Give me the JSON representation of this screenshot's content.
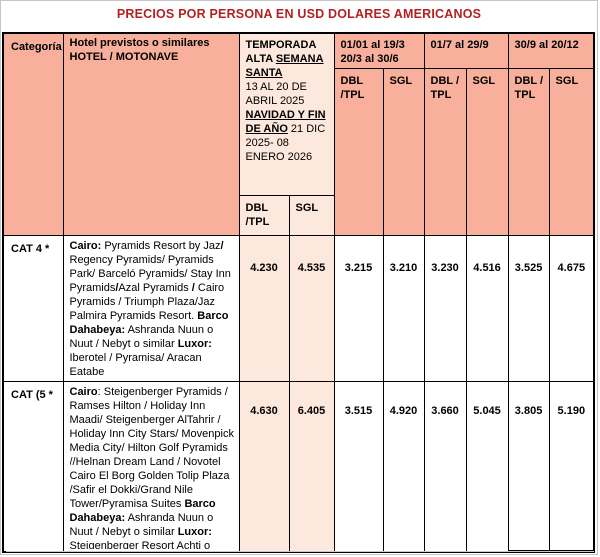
{
  "title": "PRECIOS POR PERSONA EN USD DOLARES AMERICANOS",
  "colors": {
    "title_red": "#b42121",
    "header_salmon": "#f8b09c",
    "temporada_peach": "#fce8dc"
  },
  "header": {
    "categoria": "Categoría",
    "hotels": "Hotel previstos o similares\nHOTEL / MOTONAVE",
    "temporada_segments": [
      {
        "t": "TEMPORADA ALTA ",
        "b": 1
      },
      {
        "t": "SEMANA SANTA",
        "b": 1,
        "u": 1
      },
      {
        "t": "\n13 AL 20 DE ABRIL 2025\n"
      },
      {
        "t": "NAVIDAD Y FIN DE AÑO",
        "b": 1,
        "u": 1
      },
      {
        "t": " 21 DIC 2025- 08 ENERO 2026"
      }
    ],
    "seasons": [
      "01/01 al 19/3\n20/3 al 30/6",
      "01/7 al 29/9",
      "30/9 al 20/12"
    ],
    "sub": {
      "dbl_a": "DBL\n/TPL",
      "dbl_b": "DBL /\nTPL",
      "sgl": "SGL"
    }
  },
  "rows": [
    {
      "category": "CAT 4 *",
      "hotel_segments": [
        {
          "t": "Cairo:",
          "b": 1
        },
        {
          "t": " Pyramids Resort by Jaz"
        },
        {
          "t": "/",
          "b": 1
        },
        {
          "t": " Regency Pyramids/ Pyramids Park/ Barceló Pyramids/ Stay Inn Pyramids"
        },
        {
          "t": "/",
          "b": 1
        },
        {
          "t": "Azal Pyramids "
        },
        {
          "t": "/",
          "b": 1
        },
        {
          "t": " Cairo Pyramids / Triumph Plaza/Jaz Palmira Pyramids Resort. "
        },
        {
          "t": "Barco Dahabeya:",
          "b": 1
        },
        {
          "t": " Ashranda Nuun o Nuut / Nebyt o similar "
        },
        {
          "t": "Luxor:",
          "b": 1
        },
        {
          "t": " Iberotel / Pyramisa/ Aracan Eatabe"
        }
      ],
      "prices": [
        "4.230",
        "4.535",
        "3.215",
        "3.210",
        "3.230",
        "4.516",
        "3.525",
        "4.675"
      ]
    },
    {
      "category": "CAT (5 *",
      "hotel_segments": [
        {
          "t": "Cairo",
          "b": 1
        },
        {
          "t": ": Steigenberger Pyramids / Ramses Hilton / Holiday Inn Maadi/ Steigenberger AlTahrir / Holiday Inn City Stars/ Movenpick Media City/ Hilton Golf Pyramids //Helnan Dream Land / Novotel Cairo El Borg Golden Tolip Plaza /Safir el Dokki/Grand Nile Tower/Pyramisa Suites "
        },
        {
          "t": "Barco Dahabeya:",
          "b": 1
        },
        {
          "t": " Ashranda Nuun o Nuut / Nebyt o similar "
        },
        {
          "t": "Luxor:",
          "b": 1
        },
        {
          "t": " Steigenberger Resort Achti o"
        }
      ],
      "prices": [
        "4.630",
        "6.405",
        "3.515",
        "4.920",
        "3.660",
        "5.045",
        "3.805",
        "5.190"
      ]
    }
  ]
}
